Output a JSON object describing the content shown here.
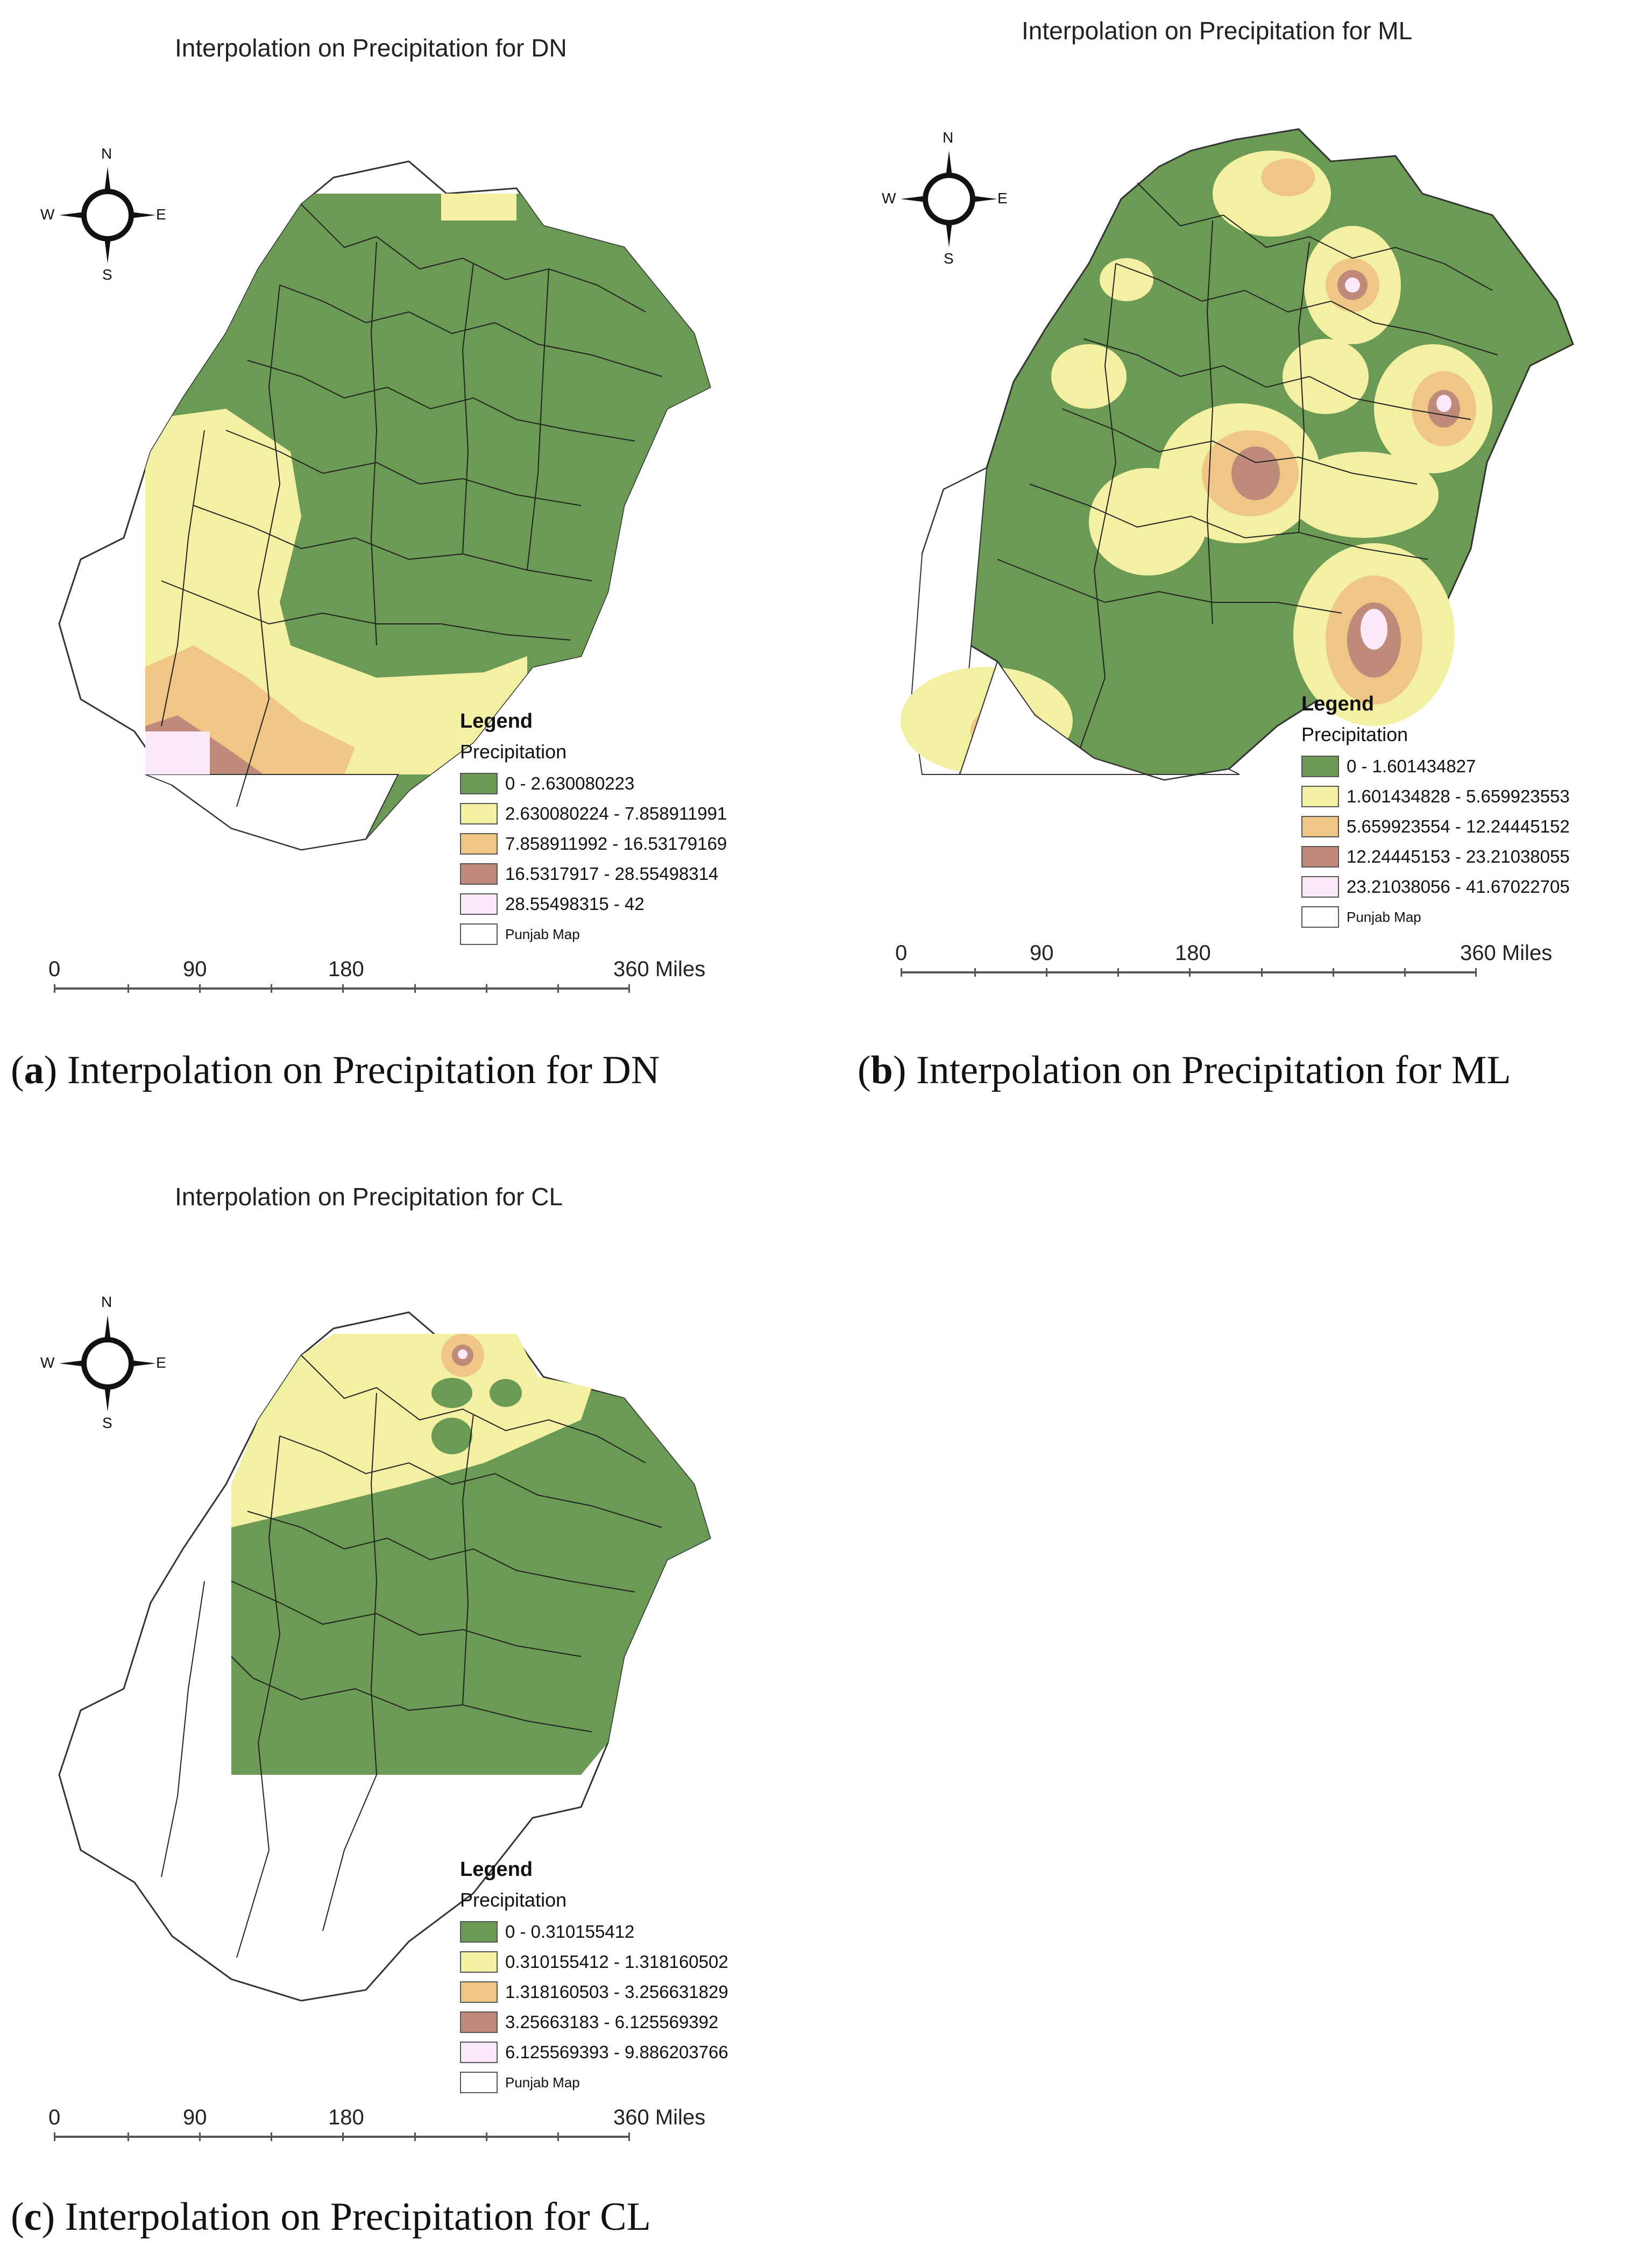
{
  "panels": [
    {
      "id": "a",
      "title": "Interpolation on Precipitation for DN",
      "caption_letter": "a",
      "caption_text": ") Interpolation on Precipitation for DN",
      "legend": {
        "title": "Legend",
        "subtitle": "Precipitation",
        "classes": [
          {
            "label": "0 - 2.630080223",
            "color": "#6b9a55"
          },
          {
            "label": "2.630080224 - 7.858911991",
            "color": "#f3f0a4"
          },
          {
            "label": "7.858911992 - 16.53179169",
            "color": "#efc685"
          },
          {
            "label": "16.5317917 - 28.55498314",
            "color": "#bf8a7a"
          },
          {
            "label": "28.55498315 - 42",
            "color": "#fbe8fa"
          }
        ],
        "base_layer": {
          "label": "Punjab Map",
          "color": "#ffffff"
        }
      },
      "scale": {
        "labels": [
          "0",
          "90",
          "180",
          "360 Miles"
        ]
      },
      "compass": {
        "n": "N",
        "s": "S",
        "e": "E",
        "w": "W"
      }
    },
    {
      "id": "b",
      "title": "Interpolation on Precipitation for ML",
      "caption_letter": "b",
      "caption_text": ") Interpolation on Precipitation for ML",
      "legend": {
        "title": "Legend",
        "subtitle": "Precipitation",
        "classes": [
          {
            "label": "0 - 1.601434827",
            "color": "#6b9a55"
          },
          {
            "label": "1.601434828 - 5.659923553",
            "color": "#f3f0a4"
          },
          {
            "label": "5.659923554 - 12.24445152",
            "color": "#efc685"
          },
          {
            "label": "12.24445153 - 23.21038055",
            "color": "#bf8a7a"
          },
          {
            "label": "23.21038056 - 41.67022705",
            "color": "#fbe8fa"
          }
        ],
        "base_layer": {
          "label": "Punjab Map",
          "color": "#ffffff"
        }
      },
      "scale": {
        "labels": [
          "0",
          "90",
          "180",
          "360 Miles"
        ]
      },
      "compass": {
        "n": "N",
        "s": "S",
        "e": "E",
        "w": "W"
      }
    },
    {
      "id": "c",
      "title": "Interpolation on Precipitation for CL",
      "caption_letter": "c",
      "caption_text": ") Interpolation on Precipitation for CL",
      "legend": {
        "title": "Legend",
        "subtitle": "Precipitation",
        "classes": [
          {
            "label": "0 - 0.310155412",
            "color": "#6b9a55"
          },
          {
            "label": "0.310155412 - 1.318160502",
            "color": "#f3f0a4"
          },
          {
            "label": "1.318160503 - 3.256631829",
            "color": "#efc685"
          },
          {
            "label": "3.25663183 - 6.125569392",
            "color": "#bf8a7a"
          },
          {
            "label": "6.125569393 - 9.886203766",
            "color": "#fbe8fa"
          }
        ],
        "base_layer": {
          "label": "Punjab Map",
          "color": "#ffffff"
        }
      },
      "scale": {
        "labels": [
          "0",
          "90",
          "180",
          "360 Miles"
        ]
      },
      "compass": {
        "n": "N",
        "s": "S",
        "e": "E",
        "w": "W"
      }
    }
  ]
}
